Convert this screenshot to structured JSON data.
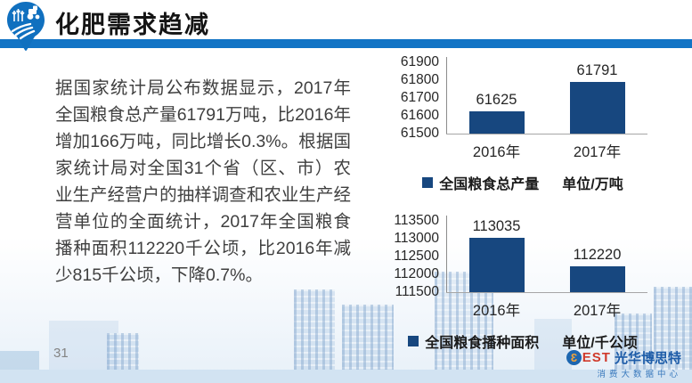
{
  "header": {
    "title": "化肥需求趋减"
  },
  "body": {
    "paragraph": "据国家统计局公布数据显示，2017年全国粮食总产量61791万吨，比2016年增加166万吨，同比增长0.3%。根据国家统计局对全国31个省（区、市）农业生产经营户的抽样调查和农业生产经营单位的全面统计，2017年全国粮食播种面积112220千公顷，比2016年减少815千公顷，下降0.7%。"
  },
  "chart_data": [
    {
      "type": "bar",
      "categories": [
        "2016年",
        "2017年"
      ],
      "values": [
        61625,
        61791
      ],
      "legend": "全国粮食总产量",
      "unit": "单位/万吨",
      "ylim": [
        61500,
        61900
      ],
      "yticks": [
        61500,
        61600,
        61700,
        61800,
        61900
      ],
      "bar_color": "#17477f",
      "grid": false,
      "legend_position": "bottom"
    },
    {
      "type": "bar",
      "categories": [
        "2016年",
        "2017年"
      ],
      "values": [
        113035,
        112220
      ],
      "legend": "全国粮食播种面积",
      "unit": "单位/千公顷",
      "ylim": [
        111500,
        113500
      ],
      "yticks": [
        111500,
        112000,
        112500,
        113000,
        113500
      ],
      "bar_color": "#17477f",
      "grid": false,
      "legend_position": "bottom"
    }
  ],
  "footer": {
    "page_number": "31",
    "logo": {
      "b_glyph": "3",
      "est": "EST",
      "name": "光华博思特",
      "subtitle": "消费大数据中心"
    }
  },
  "colors": {
    "accent_blue": "#1274c5",
    "bar_navy": "#17477f",
    "logo_red": "#d03a2b",
    "logo_blue": "#1d5ca8"
  }
}
